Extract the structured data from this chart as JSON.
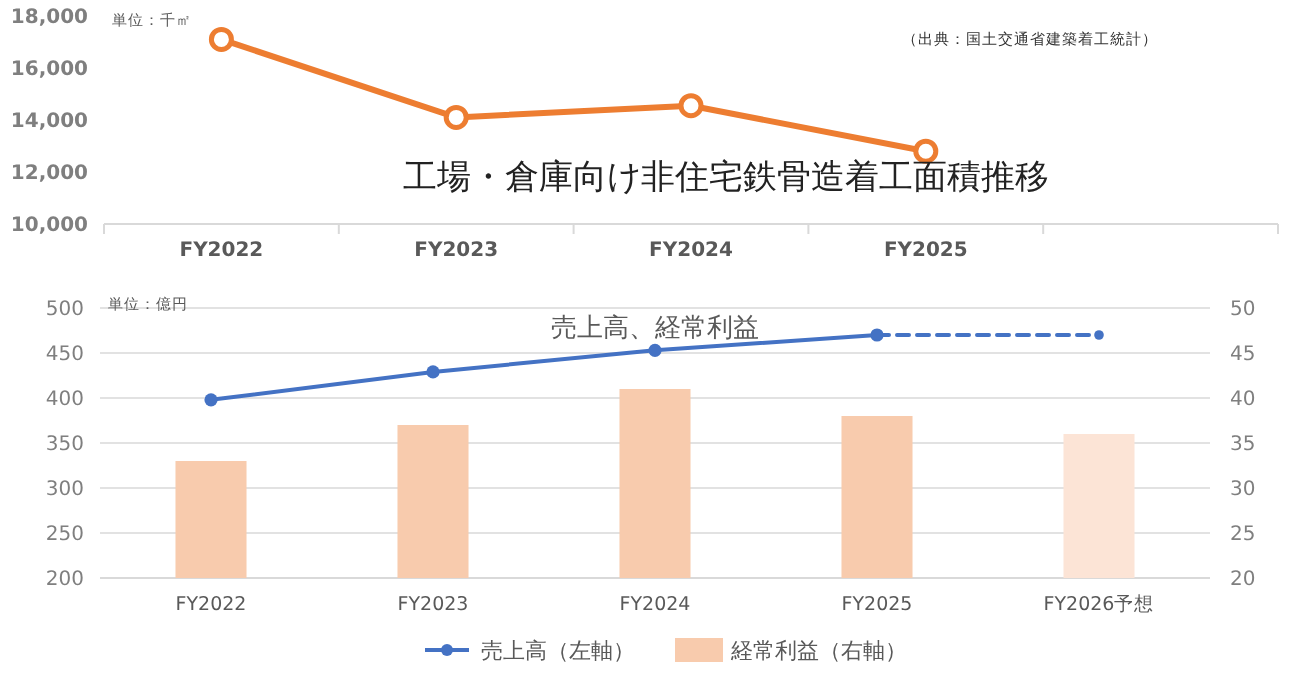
{
  "chart_data": [
    {
      "type": "line",
      "title": "工場・倉庫向け非住宅鉄骨造着工面積推移",
      "categories": [
        "FY2022",
        "FY2023",
        "FY2024",
        "FY2025",
        null
      ],
      "series": [
        {
          "color": "#ed7d31",
          "values": [
            17100,
            14100,
            14550,
            12800,
            null
          ]
        }
      ],
      "ylim": [
        10000,
        18000
      ],
      "yticks": [
        {
          "value": 10000,
          "label": "10,000"
        },
        {
          "value": 12000,
          "label": "12,000"
        },
        {
          "value": 14000,
          "label": "14,000"
        },
        {
          "value": 16000,
          "label": "16,000"
        },
        {
          "value": 18000,
          "label": "18,000"
        }
      ],
      "marker": "circle",
      "grid": false,
      "legend": false,
      "annotations": [
        "単位：千㎡",
        "（出典：国土交通省建築着工統計）"
      ]
    },
    {
      "type": "bar",
      "title": "売上高、経常利益",
      "categories": [
        "FY2022",
        "FY2023",
        "FY2024",
        "FY2025",
        "FY2026予想"
      ],
      "series": [
        {
          "name": "経常利益（右軸）",
          "type": "bar",
          "axis": "y2",
          "color": "#f8cbad",
          "colors": [
            "#f8cbad",
            "#f8cbad",
            "#f8cbad",
            "#f8cbad",
            "#fce4d6"
          ],
          "values": [
            33,
            37,
            41,
            38,
            36
          ]
        },
        {
          "name": "売上高（左軸）",
          "type": "line",
          "color": "#4472c4",
          "values": [
            398,
            429,
            453,
            470,
            null
          ]
        },
        {
          "type": "line",
          "color": "#4472c4",
          "line_style": "dashed",
          "values": [
            null,
            null,
            null,
            470,
            470
          ]
        }
      ],
      "ylim": [
        200,
        500
      ],
      "yticks": [
        200,
        250,
        300,
        350,
        400,
        450,
        500
      ],
      "y2lim": [
        20,
        50
      ],
      "y2ticks": [
        20,
        25,
        30,
        35,
        40,
        45,
        50
      ],
      "marker": "circle",
      "grid": "y",
      "legend": "bottom",
      "annotations": [
        "単位：億円"
      ]
    }
  ]
}
